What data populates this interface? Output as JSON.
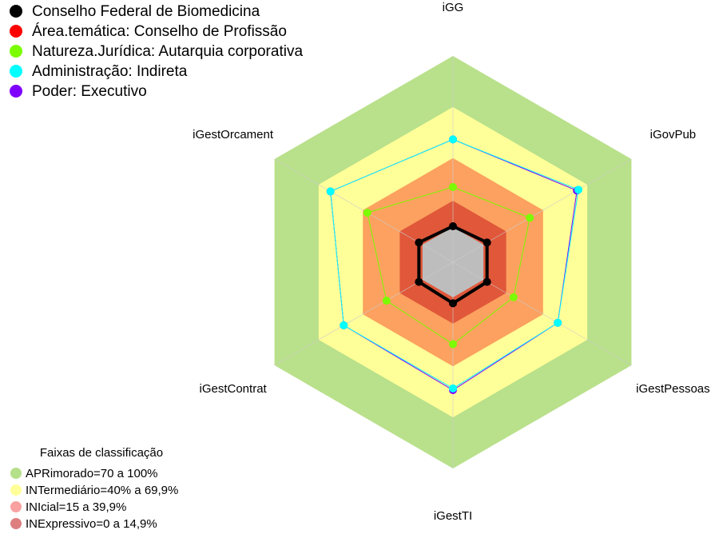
{
  "chart_data": {
    "type": "radar",
    "axes": [
      "iGG",
      "iGovPub",
      "iGestPessoas",
      "iGestTI",
      "iGestContrat",
      "iGestOrcament"
    ],
    "rlim": [
      0,
      100
    ],
    "series": [
      {
        "name": "Conselho Federal de Biomedicina",
        "color": "#000000",
        "values": [
          0,
          2,
          2,
          3,
          2,
          2
        ]
      },
      {
        "name": "Área.temática: Conselho de Profissão",
        "color": "#ff0000",
        "values": [
          0,
          2,
          2,
          3,
          2,
          2
        ]
      },
      {
        "name": "Natureza.Jurídica: Autarquia corporativa",
        "color": "#7cfc00",
        "values": [
          23,
          31,
          20,
          27,
          24,
          37
        ]
      },
      {
        "name": "Administração: Indireta",
        "color": "#00ffff",
        "values": [
          51,
          64,
          50,
          53,
          53,
          62
        ]
      },
      {
        "name": "Poder: Executivo",
        "color": "#7f00ff",
        "values": [
          51,
          63,
          50,
          54,
          53,
          62
        ]
      }
    ],
    "bands_title": "Faixas de classificação",
    "bands": [
      {
        "label": "APRimorado=70 a 100%",
        "from": 70,
        "color": "#b9e08b",
        "legend_color": "#b5e08a"
      },
      {
        "label": "INTermediário=40% a 69,9%",
        "from": 40,
        "color": "#ffff99",
        "legend_color": "#ffff99"
      },
      {
        "label": "INIcial=15 a 39,9%",
        "from": 15,
        "color": "#fca15f",
        "legend_color": "#f9a0a0"
      },
      {
        "label": "INExpressivo=0 a 14,9%",
        "from": 0,
        "color": "#e0573a",
        "legend_color": "#dd7f7f"
      }
    ]
  }
}
